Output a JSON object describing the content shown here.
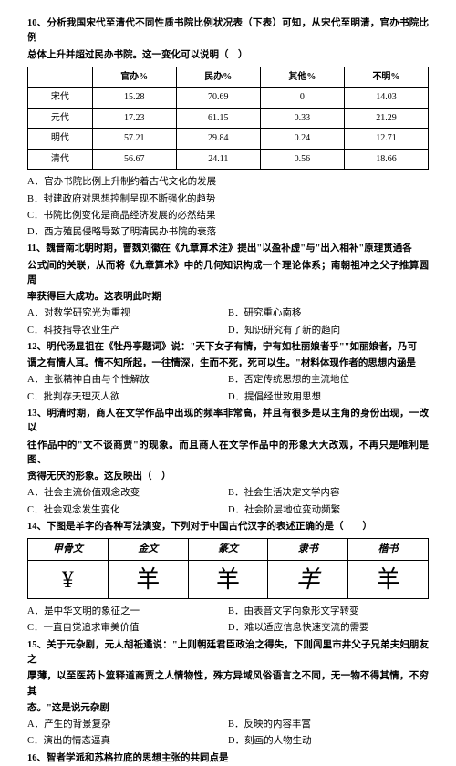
{
  "q10": {
    "stem_l1": "10、分析我国宋代至清代不同性质书院比例状况表（下表）可知，从宋代至明清，官办书院比例",
    "stem_l2": "总体上升并超过民办书院。这一变化可以说明（　）",
    "table": {
      "columns": [
        "",
        "官办%",
        "民办%",
        "其他%",
        "不明%"
      ],
      "rows": [
        [
          "宋代",
          "15.28",
          "70.69",
          "0",
          "14.03"
        ],
        [
          "元代",
          "17.23",
          "61.15",
          "0.33",
          "21.29"
        ],
        [
          "明代",
          "57.21",
          "29.84",
          "0.24",
          "12.71"
        ],
        [
          "清代",
          "56.67",
          "24.11",
          "0.56",
          "18.66"
        ]
      ]
    },
    "opts": {
      "A": "A．官办书院比例上升制约着古代文化的发展",
      "B": "B．封建政府对思想控制呈现不断强化的趋势",
      "C": "C．书院比例变化是商品经济发展的必然结果",
      "D": "D．西方殖民侵略导致了明清民办书院的衰落"
    }
  },
  "q11": {
    "stem_l1": "11、魏晋南北朝时期，曹魏刘徽在《九章算术注》提出\"以盈补虚\"与\"出入相补\"原理贯通各",
    "stem_l2": "公式间的关联，从而将《九章算术》中的几何知识构成一个理论体系；南朝祖冲之父子推算圆周",
    "stem_l3": "率获得巨大成功。这表明此时期",
    "opts": {
      "A": "A．对数学研究光为重视",
      "B": "B．研究重心南移",
      "C": "C．科技指导农业生产",
      "D": "D．知识研究有了新的趋向"
    }
  },
  "q12": {
    "stem_l1": "12、明代汤显祖在《牡丹亭题词》说：\"天下女子有情，宁有如杜丽娘者乎\"\"如丽娘者，乃可",
    "stem_l2": "谓之有情人耳。情不知所起，一往情深，生而不死，死可以生。\"材料体现作者的思想内涵是",
    "opts": {
      "A": "A．主张精神自由与个性解放",
      "B": "B．否定传统思想的主流地位",
      "C": "C．批判存天理灭人欲",
      "D": "D．提倡经世致用思想"
    }
  },
  "q13": {
    "stem_l1": "13、明清时期，商人在文学作品中出现的频率非常高，并且有很多是以主角的身份出现，一改以",
    "stem_l2": "往作品中的\"文不谈商贾\"的现象。而且商人在文学作品中的形象大大改观，不再只是唯利是图、",
    "stem_l3": "贪得无厌的形象。这反映出（　）",
    "opts": {
      "A": "A．社会主流价值观念改变",
      "B": "B．社会生活决定文学内容",
      "C": "C．社会观念发生变化",
      "D": "D．社会阶层地位变动频繁"
    }
  },
  "q14": {
    "stem": "14、下图是羊字的各种写法演变，下列对于中国古代汉字的表述正确的是（　　）",
    "table": {
      "headers": [
        "甲骨文",
        "金文",
        "篆文",
        "隶书",
        "楷书"
      ],
      "glyphs": [
        "¥",
        "羊",
        "羊",
        "羊",
        "羊"
      ]
    },
    "opts": {
      "A": "A．是中华文明的象征之一",
      "B": "B．由表音文字向象形文字转变",
      "C": "C．一直自觉追求审美价值",
      "D": "D．难以适应信息快速交流的需要"
    }
  },
  "q15": {
    "stem_l1": "15、关于元杂剧，元人胡祗遹说：\"上则朝廷君臣政治之得失，下则闾里市井父子兄弟夫妇朋友之",
    "stem_l2": "厚薄，以至医药卜筮释道商贾之人情物性，殊方异域风俗语言之不同，无一物不得其情，不穷其",
    "stem_l3": "态。\"这是说元杂剧",
    "opts": {
      "A": "A．产生的背景复杂",
      "B": "B．反映的内容丰富",
      "C": "C．演出的情态逼真",
      "D": "D．刻画的人物生动"
    }
  },
  "q16": {
    "stem": "16、智者学派和苏格拉底的思想主张的共同点是"
  }
}
